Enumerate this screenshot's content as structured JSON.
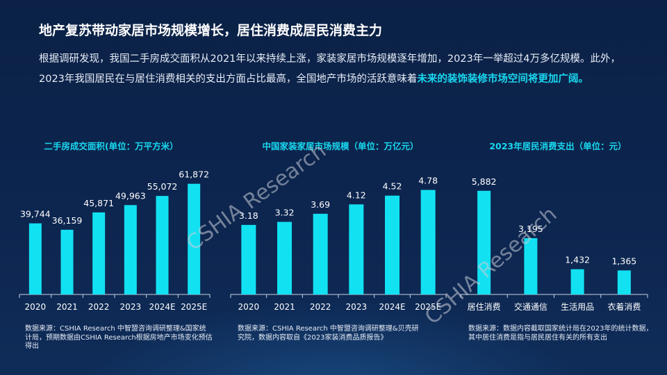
{
  "title": "地产复苏带动家居市场规模增长，居住消费成居民消费主力",
  "intro_text": "根据调研发现，我国二手房成交面积从2021年以来持续上涨，家装家居市场规模逐年增加，2023年一举超过4万多亿规模。此外，2023年我国居民在与居住消费相关的支出方面占比最高，全国地产市场的活跃意味着",
  "intro_highlight": "未来的装饰装修市场空间将更加广阔。",
  "watermark": "CSHIA Research",
  "colors": {
    "bar": "#12e1f2",
    "accent": "#19d8f0",
    "background": "#0c2247"
  },
  "chart_data": [
    {
      "type": "bar",
      "title": "二手房成交面积(单位：万平方米）",
      "categories": [
        "2020",
        "2021",
        "2022",
        "2023",
        "2024E",
        "2025E"
      ],
      "values": [
        39744,
        36159,
        45871,
        49963,
        55072,
        61872
      ],
      "value_labels": [
        "39,744",
        "36,159",
        "45,871",
        "49,963",
        "55,072",
        "61,872"
      ],
      "ylim": [
        0,
        66000
      ],
      "source": "数据来源：CSHIA Research 中智盟咨询调研整理&国家统计局，预期数据由CSHIA Research根据房地产市场变化预估得出"
    },
    {
      "type": "bar",
      "title": "中国家装家居市场规模（单位：万亿元）",
      "categories": [
        "2020",
        "2021",
        "2022",
        "2023",
        "2024E",
        "2025E"
      ],
      "values": [
        3.18,
        3.32,
        3.69,
        4.12,
        4.52,
        4.78
      ],
      "value_labels": [
        "3.18",
        "3.32",
        "3.69",
        "4.12",
        "4.52",
        "4.78"
      ],
      "ylim": [
        0,
        5.4
      ],
      "source": "数据来源：CSHIA Research 中智盟咨询调研整理&贝壳研究院，数据内容取自《2023家装消费品质报告》"
    },
    {
      "type": "bar",
      "title": "2023年居民消费支出（单位：元）",
      "categories": [
        "居住消费",
        "交通通信",
        "生活用品",
        "衣着消费"
      ],
      "values": [
        5882,
        3195,
        1432,
        1365
      ],
      "value_labels": [
        "5,882",
        "3,195",
        "1,432",
        "1,365"
      ],
      "ylim": [
        0,
        6700
      ],
      "source": "数据来源：数据内容截取国家统计局在2023年的统计数据，其中居住消费是指与居民居住有关的所有支出"
    }
  ]
}
